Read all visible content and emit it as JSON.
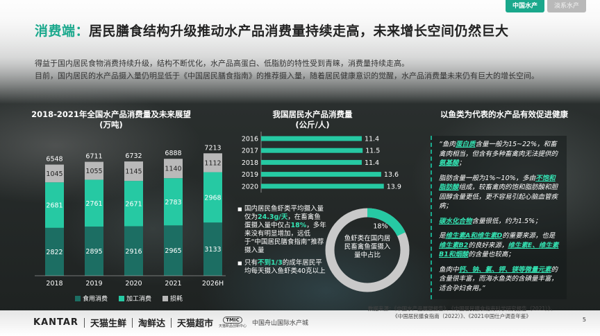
{
  "tabs": [
    {
      "label": "中国水产",
      "active": true
    },
    {
      "label": "淡系水产",
      "active": false
    }
  ],
  "title": {
    "accent": "消费端：",
    "main": "居民膳食结构升级推动水产品消费量持续走高，未来增长空间仍然巨大"
  },
  "intro": {
    "p1": "得益于国内居民食物消费持续升级，结构不断优化，水产品高蛋白、低脂肪的特性受到青睐，消费量持续走高。",
    "p2": "目前，国内居民的水产品摄入量仍明显低于《中国居民膳食指南》的推荐摄入量，随着居民健康意识的觉醒，水产品消费量未来仍有巨大的增长空间。"
  },
  "colors": {
    "accent": "#1aa88c",
    "food": "#1c6e63",
    "processing": "#26c9a3",
    "loss": "#b9b9b9"
  },
  "chart1": {
    "title_line1": "2018-2021年全国水产品消费量及未来展望",
    "title_line2": "(万吨)"
  },
  "chart2": {
    "title_line1": "我国居民水产品消费量",
    "title_line2": "(公斤/人)"
  },
  "chart_data": [
    {
      "type": "bar",
      "stacked": true,
      "title": "2018-2021年全国水产品消费量及未来展望",
      "subtitle": "(万吨)",
      "categories": [
        "2018",
        "2019",
        "2020",
        "2021",
        "2026H"
      ],
      "series": [
        {
          "name": "食用消费",
          "values": [
            2822,
            2895,
            2916,
            2965,
            3133
          ]
        },
        {
          "name": "加工消费",
          "values": [
            2681,
            2761,
            2671,
            2783,
            2968
          ]
        },
        {
          "name": "损耗",
          "values": [
            1045,
            1055,
            1145,
            1140,
            1112
          ]
        }
      ],
      "totals": [
        6548,
        6711,
        6732,
        6888,
        7213
      ],
      "legend": "bottom"
    },
    {
      "type": "bar",
      "orientation": "horizontal",
      "title": "我国居民水产品消费量",
      "subtitle": "(公斤/人)",
      "categories": [
        "2016",
        "2017",
        "2018",
        "2019",
        "2020"
      ],
      "values": [
        11.4,
        11.5,
        11.4,
        13.6,
        13.9
      ]
    },
    {
      "type": "pie",
      "variant": "donut",
      "slices": [
        {
          "label": "鱼虾类在国内居民畜禽鱼蛋摄入量中占比",
          "value": 18
        }
      ],
      "value_label": "18%",
      "center_text": "鱼虾类在国内居民畜禽鱼蛋摄入量中占比"
    }
  ],
  "bullets": {
    "b1": {
      "t1": "国内居民鱼虾类平均摄入量仅为",
      "h1": "24.3g/天",
      "t2": "，在畜禽鱼蛋摄入量中仅占",
      "h2": "18%",
      "t3": "，多年来没有明显增加，远低于“中国居民膳食指南”推荐摄入量"
    },
    "b2": {
      "t1": "只有",
      "h1": "不到1/3",
      "t2": "的成年居民平均每天摄入鱼虾类40克以上"
    }
  },
  "right_panel": {
    "title": "以鱼类为代表的水产品有效促进健康",
    "p1": {
      "t1": "“鱼肉",
      "h1": "蛋白质",
      "t2": "含量一般为15~22%，和畜禽肉相当，但含有多种畜禽肉无法提供的",
      "h2": "氨基酸",
      "t3": "；"
    },
    "p2": {
      "t1": "脂肪含量一般为1%~10%，多由",
      "h1": "不饱和脂肪酸",
      "t2": "组成，较畜禽肉的饱和脂肪酸和胆固醇含量更低，更不容易引起心脑血管疾病；"
    },
    "p3": {
      "h1": "碳水化合物",
      "t1": "含量很低，约为1.5%；"
    },
    "p4": {
      "t1": "是",
      "h1": "维生素A和维生素D",
      "t2": "的重要来源，也是",
      "h2": "维生素B2",
      "t3": "的良好来源，",
      "h3": "维生素E、维生素B1和烟酸",
      "t4": "的含量也较高；"
    },
    "p5": {
      "t1": "鱼肉中",
      "h1": "钙、钠、氯、钾、镁等微量元素",
      "t2": "的含量很丰富，而海水鱼类的含碘量丰富，适合孕妇食用。”"
    }
  },
  "footer": {
    "kantar": "KANTAR",
    "tmall_fresh": "天猫生鲜",
    "taoxianda": "淘鲜达",
    "tmall_super": "天猫超市",
    "tmic": "TMIC",
    "tmic_sub": "天猫新品创新中心",
    "zhoushan": "中国舟山国际水产城",
    "source_line1": "数据来源：《中国水产品展望报告》、《中国居民膳食指南科学研究报告（2021）》、",
    "source_line2": "《中国居民膳食指南（2022）》、《2021中国仕户调查年鉴》",
    "page": "5"
  }
}
